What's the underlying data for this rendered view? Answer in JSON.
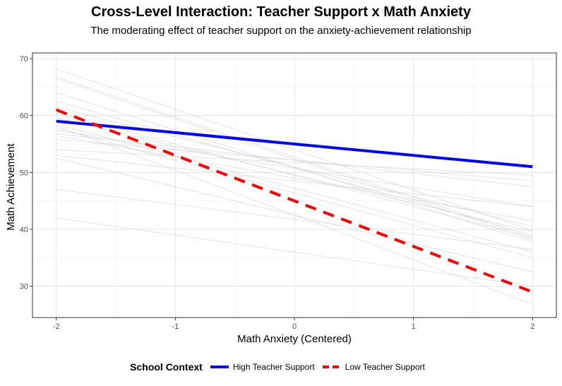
{
  "chart_data": {
    "type": "line",
    "title": "Cross-Level Interaction: Teacher Support x Math Anxiety",
    "subtitle": "The moderating effect of teacher support on the anxiety-achievement relationship",
    "xlabel": "Math Anxiety (Centered)",
    "ylabel": "Math Achievement",
    "xlim": [
      -2.2,
      2.2
    ],
    "ylim": [
      24.5,
      71
    ],
    "x_ticks": [
      "-2",
      "-1",
      "0",
      "1",
      "2"
    ],
    "y_ticks": [
      "30",
      "40",
      "50",
      "60",
      "70"
    ],
    "x_tick_values": [
      -2,
      -1,
      0,
      1,
      2
    ],
    "y_tick_values": [
      30,
      40,
      50,
      60,
      70
    ],
    "grid": true,
    "legend_position": "bottom",
    "legend_title": "School Context",
    "series": [
      {
        "name": "High Teacher Support",
        "color": "#0000FF",
        "dash": "solid",
        "x": [
          -2,
          2
        ],
        "y": [
          59.0,
          51.0
        ]
      },
      {
        "name": "Low Teacher Support",
        "color": "#FF0000",
        "dash": "dashed",
        "x": [
          -2,
          2
        ],
        "y": [
          61.0,
          29.0
        ]
      }
    ],
    "background_lines_color": "#CCCCCC",
    "background_lines": [
      [
        68.2,
        39.8
      ],
      [
        66.8,
        38.6
      ],
      [
        66.5,
        38.2
      ],
      [
        64.0,
        37.8
      ],
      [
        62.5,
        39.0
      ],
      [
        61.5,
        40.5
      ],
      [
        60.5,
        38.5
      ],
      [
        59.6,
        39.6
      ],
      [
        58.5,
        36.0
      ],
      [
        57.8,
        35.0
      ],
      [
        57.4,
        44.0
      ],
      [
        56.8,
        47.5
      ],
      [
        56.5,
        41.5
      ],
      [
        55.8,
        48.5
      ],
      [
        54.0,
        49.5
      ],
      [
        53.0,
        44.0
      ],
      [
        52.5,
        32.5
      ],
      [
        47.0,
        36.5
      ],
      [
        42.0,
        30.0
      ],
      [
        58.2,
        26.8
      ]
    ]
  }
}
